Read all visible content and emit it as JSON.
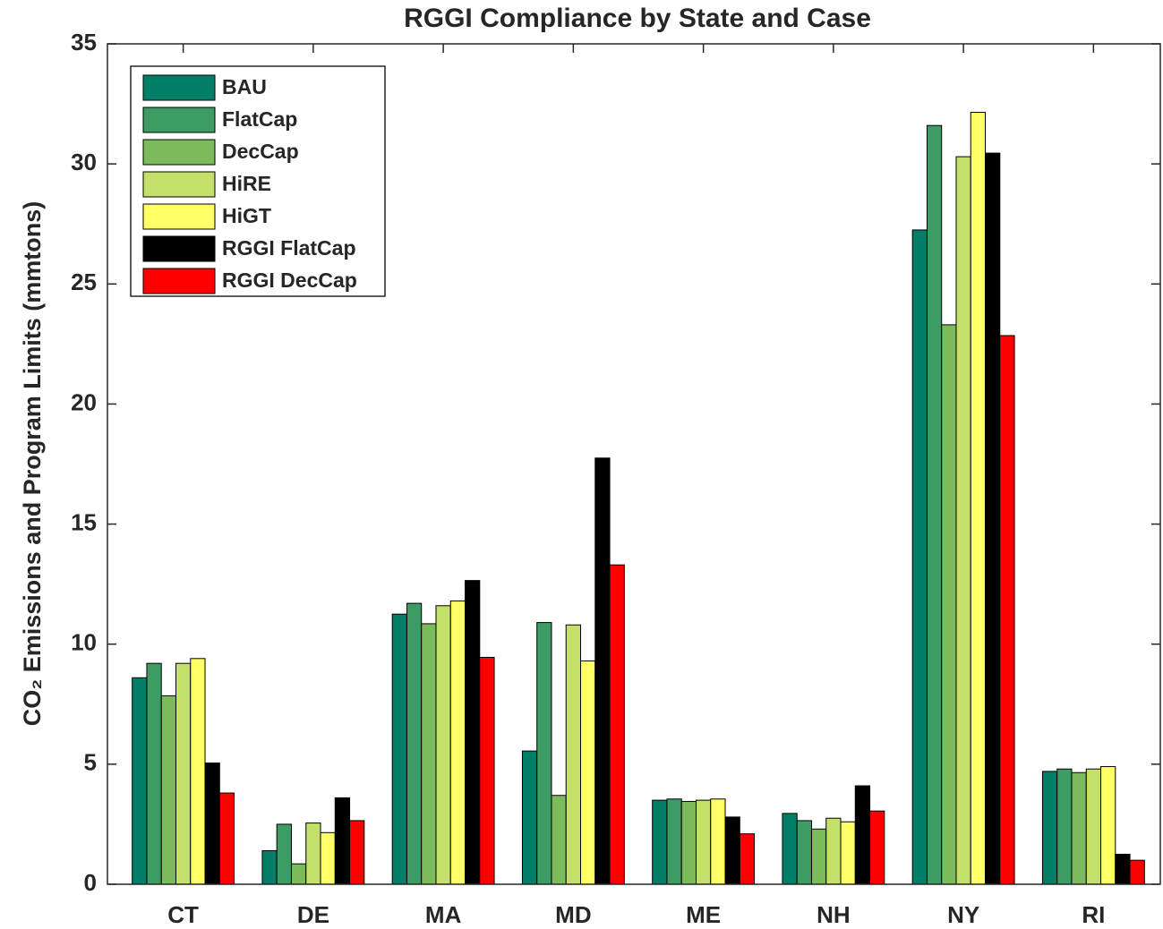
{
  "chart_data": {
    "type": "bar",
    "title": "RGGI Compliance by State and Case",
    "y_label": "CO₂ Emissions and Program Limits (mmtons)",
    "categories": [
      "CT",
      "DE",
      "MA",
      "MD",
      "ME",
      "NH",
      "NY",
      "RI"
    ],
    "series": [
      {
        "name": "BAU",
        "color": "#007f66",
        "values": [
          8.6,
          1.4,
          11.25,
          5.55,
          3.5,
          2.95,
          27.25,
          4.7
        ]
      },
      {
        "name": "FlatCap",
        "color": "#3d9b64",
        "values": [
          9.2,
          2.5,
          11.7,
          10.9,
          3.55,
          2.65,
          31.6,
          4.8
        ]
      },
      {
        "name": "DecCap",
        "color": "#7bbb5c",
        "values": [
          7.85,
          0.85,
          10.85,
          3.7,
          3.45,
          2.3,
          23.3,
          4.65
        ]
      },
      {
        "name": "HiRE",
        "color": "#c2e06a",
        "values": [
          9.2,
          2.55,
          11.6,
          10.8,
          3.5,
          2.75,
          30.3,
          4.8
        ]
      },
      {
        "name": "HiGT",
        "color": "#ffff66",
        "values": [
          9.4,
          2.15,
          11.8,
          9.3,
          3.55,
          2.6,
          32.15,
          4.9
        ]
      },
      {
        "name": "RGGI FlatCap",
        "color": "#000000",
        "values": [
          5.05,
          3.6,
          12.65,
          17.75,
          2.8,
          4.1,
          30.45,
          1.25
        ]
      },
      {
        "name": "RGGI DecCap",
        "color": "#ff0000",
        "values": [
          3.8,
          2.65,
          9.45,
          13.3,
          2.1,
          3.05,
          22.85,
          1.0
        ]
      }
    ],
    "ylim": [
      0,
      35
    ],
    "yticks": [
      0,
      5,
      10,
      15,
      20,
      25,
      30,
      35
    ],
    "legend": "upper left"
  }
}
